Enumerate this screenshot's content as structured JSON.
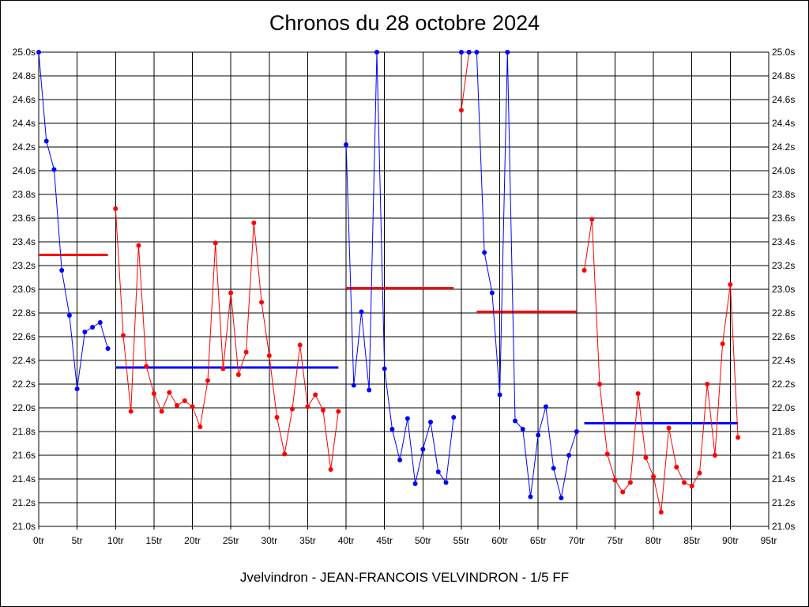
{
  "chart_data": {
    "type": "line",
    "title": "Chronos du 28 octobre 2024",
    "footer": "Jvelvindron - JEAN-FRANCOIS VELVINDRON - 1/5 FF",
    "xlabel": "",
    "ylabel": "",
    "xlim": [
      0,
      95
    ],
    "ylim": [
      21.0,
      25.0
    ],
    "grid": true,
    "x_tick_labels": [
      "0tr",
      "5tr",
      "10tr",
      "15tr",
      "20tr",
      "25tr",
      "30tr",
      "35tr",
      "40tr",
      "45tr",
      "50tr",
      "55tr",
      "60tr",
      "65tr",
      "70tr",
      "75tr",
      "80tr",
      "85tr",
      "90tr",
      "95tr"
    ],
    "y_tick_labels": [
      "21.0s",
      "21.2s",
      "21.4s",
      "21.6s",
      "21.8s",
      "22.0s",
      "22.2s",
      "22.4s",
      "22.6s",
      "22.8s",
      "23.0s",
      "23.2s",
      "23.4s",
      "23.6s",
      "23.8s",
      "24.0s",
      "24.2s",
      "24.4s",
      "24.6s",
      "24.8s",
      "25.0s"
    ],
    "colors": {
      "blue": "#0000ff",
      "red": "#ff0000",
      "grid": "#000000"
    },
    "series": [
      {
        "color": "#0000ff",
        "points": [
          [
            0,
            25.0
          ],
          [
            1,
            24.25
          ],
          [
            2,
            24.01
          ],
          [
            3,
            23.16
          ],
          [
            4,
            22.78
          ],
          [
            5,
            22.16
          ],
          [
            6,
            22.64
          ],
          [
            7,
            22.68
          ],
          [
            8,
            22.72
          ],
          [
            9,
            22.5
          ]
        ],
        "avg": {
          "from": 0,
          "to": 9,
          "value": 23.29,
          "color": "#ff0000"
        }
      },
      {
        "color": "#ff0000",
        "points": [
          [
            10,
            23.68
          ],
          [
            11,
            22.61
          ],
          [
            12,
            21.97
          ],
          [
            13,
            23.37
          ],
          [
            14,
            22.35
          ],
          [
            15,
            22.12
          ],
          [
            16,
            21.97
          ],
          [
            17,
            22.13
          ],
          [
            18,
            22.02
          ],
          [
            19,
            22.06
          ],
          [
            20,
            22.01
          ],
          [
            21,
            21.84
          ],
          [
            22,
            22.23
          ],
          [
            23,
            23.39
          ],
          [
            24,
            22.33
          ],
          [
            25,
            22.97
          ],
          [
            26,
            22.28
          ],
          [
            27,
            22.47
          ],
          [
            28,
            23.56
          ],
          [
            29,
            22.89
          ],
          [
            30,
            22.44
          ],
          [
            31,
            21.92
          ],
          [
            32,
            21.61
          ],
          [
            33,
            21.99
          ],
          [
            34,
            22.53
          ],
          [
            35,
            22.01
          ],
          [
            36,
            22.11
          ],
          [
            37,
            21.98
          ],
          [
            38,
            21.48
          ],
          [
            39,
            21.97
          ]
        ],
        "avg": {
          "from": 10,
          "to": 39,
          "value": 22.34,
          "color": "#0000ff"
        }
      },
      {
        "color": "#0000ff",
        "points": [
          [
            40,
            24.22
          ],
          [
            41,
            22.19
          ],
          [
            42,
            22.81
          ],
          [
            43,
            22.15
          ],
          [
            44,
            25.0
          ],
          [
            45,
            22.33
          ],
          [
            46,
            21.82
          ],
          [
            47,
            21.56
          ],
          [
            48,
            21.91
          ],
          [
            49,
            21.36
          ],
          [
            50,
            21.65
          ],
          [
            51,
            21.88
          ],
          [
            52,
            21.46
          ],
          [
            53,
            21.37
          ],
          [
            54,
            21.92
          ]
        ],
        "avg": {
          "from": 40,
          "to": 54,
          "value": 23.01,
          "color": "#ff0000"
        }
      },
      {
        "color": "#ff0000",
        "points": [
          [
            55,
            24.51
          ],
          [
            56,
            25.0
          ]
        ],
        "avg": null
      },
      {
        "color": "#0000ff",
        "points": [
          [
            55,
            25.0
          ],
          [
            56,
            25.0
          ],
          [
            57,
            25.0
          ],
          [
            58,
            23.31
          ],
          [
            59,
            22.97
          ],
          [
            60,
            22.11
          ],
          [
            61,
            25.0
          ],
          [
            62,
            21.89
          ],
          [
            63,
            21.82
          ],
          [
            64,
            21.25
          ],
          [
            65,
            21.77
          ],
          [
            66,
            22.01
          ],
          [
            67,
            21.49
          ],
          [
            68,
            21.24
          ],
          [
            69,
            21.6
          ],
          [
            70,
            21.8
          ]
        ],
        "avg": {
          "from": 57,
          "to": 70,
          "value": 22.81,
          "color": "#ff0000"
        }
      },
      {
        "color": "#ff0000",
        "points": [
          [
            71,
            23.16
          ],
          [
            72,
            23.59
          ],
          [
            73,
            22.2
          ],
          [
            74,
            21.61
          ],
          [
            75,
            21.39
          ],
          [
            76,
            21.29
          ],
          [
            77,
            21.37
          ],
          [
            78,
            22.12
          ],
          [
            79,
            21.58
          ],
          [
            80,
            21.42
          ],
          [
            81,
            21.12
          ],
          [
            82,
            21.83
          ],
          [
            83,
            21.5
          ],
          [
            84,
            21.37
          ],
          [
            85,
            21.34
          ],
          [
            86,
            21.45
          ],
          [
            87,
            22.2
          ],
          [
            88,
            21.6
          ],
          [
            89,
            22.54
          ],
          [
            90,
            23.04
          ],
          [
            91,
            21.75
          ]
        ],
        "avg": {
          "from": 71,
          "to": 91,
          "value": 21.87,
          "color": "#0000ff"
        }
      }
    ]
  }
}
